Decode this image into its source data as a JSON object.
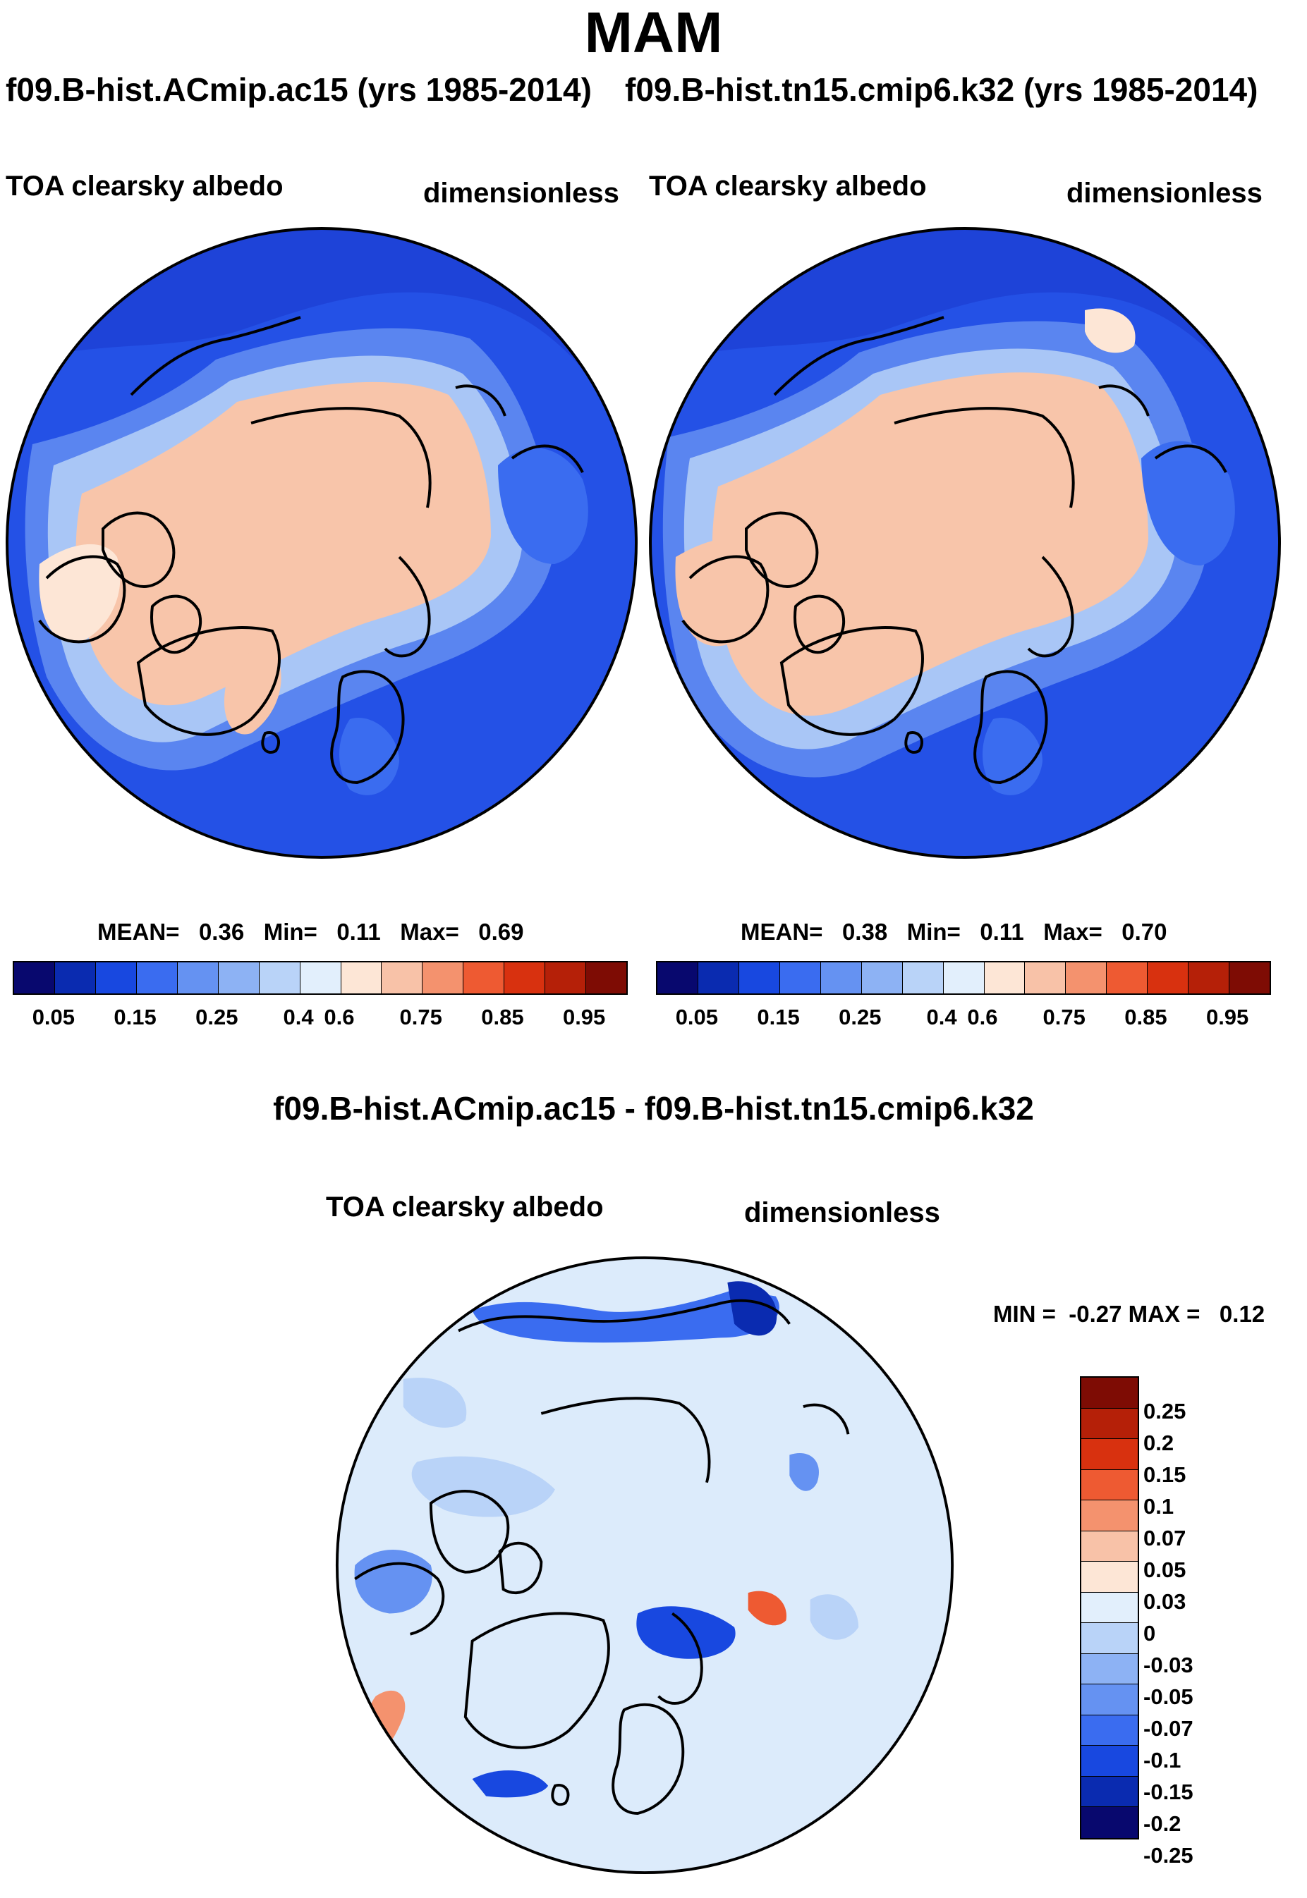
{
  "title": "MAM",
  "colors": {
    "seq": [
      "#08086e",
      "#0a2bb0",
      "#1848e0",
      "#3a6cf0",
      "#6592f2",
      "#8db2f4",
      "#b9d3f8",
      "#e2effc",
      "#fde6d6",
      "#f8c2a8",
      "#f4926e",
      "#ee5a32",
      "#d8310f",
      "#b52008",
      "#7e0c04"
    ],
    "diff": [
      "#7e0c04",
      "#b52008",
      "#d8310f",
      "#ee5a32",
      "#f4926e",
      "#f8c2a8",
      "#fde6d6",
      "#e2effc",
      "#b9d3f8",
      "#8db2f4",
      "#6592f2",
      "#3a6cf0",
      "#1848e0",
      "#0a2bb0",
      "#08086e"
    ]
  },
  "panels": [
    {
      "run": "f09.B-hist.ACmip.ac15 (yrs 1985-2014)",
      "variable": "TOA clearsky albedo",
      "units": "dimensionless",
      "stats": {
        "mean_label": "MEAN=",
        "mean": "0.36",
        "min_label": "Min=",
        "min": "0.11",
        "max_label": "Max=",
        "max": "0.69"
      },
      "ticks": [
        "0.05",
        "0.15",
        "0.25",
        "0.4",
        "0.6",
        "0.75",
        "0.85",
        "0.95"
      ]
    },
    {
      "run": "f09.B-hist.tn15.cmip6.k32 (yrs 1985-2014)",
      "variable": "TOA clearsky albedo",
      "units": "dimensionless",
      "stats": {
        "mean_label": "MEAN=",
        "mean": "0.38",
        "min_label": "Min=",
        "min": "0.11",
        "max_label": "Max=",
        "max": "0.70"
      },
      "ticks": [
        "0.05",
        "0.15",
        "0.25",
        "0.4",
        "0.6",
        "0.75",
        "0.85",
        "0.95"
      ]
    }
  ],
  "difference": {
    "title": "f09.B-hist.ACmip.ac15 - f09.B-hist.tn15.cmip6.k32",
    "variable": "TOA clearsky albedo",
    "units": "dimensionless",
    "minmax": "MIN =  -0.27 MAX =   0.12",
    "labels": [
      "0.25",
      "0.2",
      "0.15",
      "0.1",
      "0.07",
      "0.05",
      "0.03",
      "0",
      "-0.03",
      "-0.05",
      "-0.07",
      "-0.1",
      "-0.15",
      "-0.2",
      "-0.25"
    ]
  }
}
